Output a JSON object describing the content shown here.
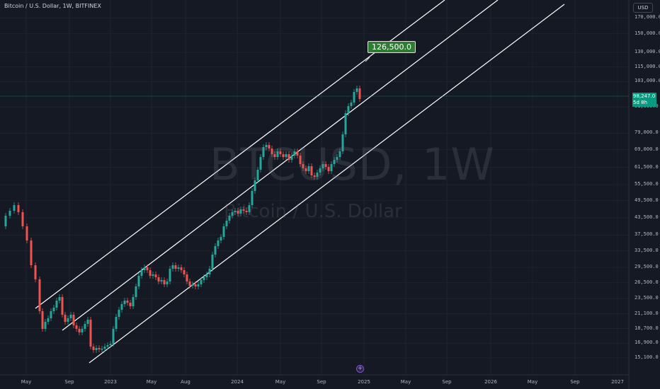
{
  "header": {
    "symbol_title": "Bitcoin / U.S. Dollar, 1W, BITFINEX"
  },
  "price_axis": {
    "currency": "USD",
    "ticks": [
      "170,000.0",
      "150,000.0",
      "130,000.0",
      "115,000.0",
      "103,000.0",
      "91,000.0",
      "79,000.0",
      "69,000.0",
      "61,500.0",
      "55,500.0",
      "49,500.0",
      "43,500.0",
      "37,500.0",
      "33,500.0",
      "29,500.0",
      "26,500.0",
      "23,500.0",
      "21,100.0",
      "18,700.0",
      "16,900.0",
      "15,100.0"
    ],
    "current_price": "98,247.0",
    "countdown": "5d 8h"
  },
  "time_axis": {
    "ticks": [
      "May",
      "Sep",
      "2023",
      "May",
      "Aug",
      "2024",
      "May",
      "Sep",
      "2025",
      "May",
      "Sep",
      "2026",
      "May",
      "Sep",
      "2027"
    ]
  },
  "watermark": {
    "symbol": "BTCUSD, 1W",
    "name": "Bitcoin / U.S. Dollar"
  },
  "annotation": {
    "target_label": "126,500.0"
  },
  "colors": {
    "background": "#151924",
    "up": "#26a69a",
    "down": "#ef5350",
    "channel": "#ffffff",
    "price_line": "#089981",
    "target_bg": "#2e7d32"
  },
  "icons": {
    "add_marker": "plus-circle-icon"
  }
}
